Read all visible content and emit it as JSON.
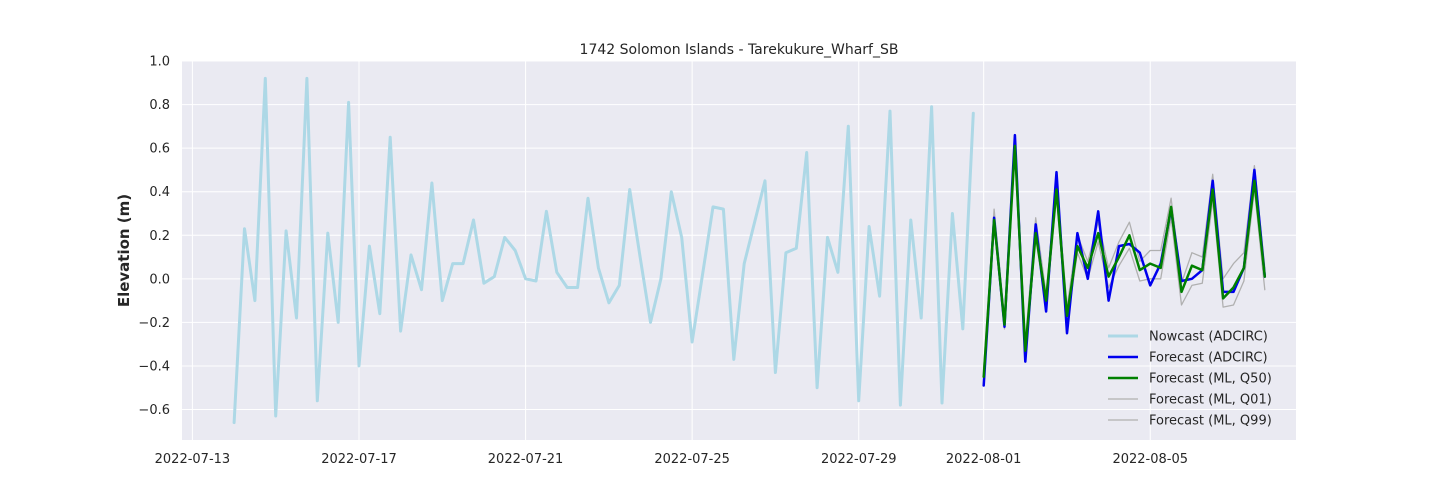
{
  "chart_data": {
    "type": "line",
    "title": "1742 Solomon Islands - Tarekukure_Wharf_SB",
    "xlabel": "",
    "ylabel": "Elevation (m)",
    "xlim": [
      "2022-07-12T18:00",
      "2022-08-08T12:00"
    ],
    "ylim": [
      -0.74,
      1.0
    ],
    "x_ticks": [
      "2022-07-13",
      "2022-07-17",
      "2022-07-21",
      "2022-07-25",
      "2022-07-29",
      "2022-08-01",
      "2022-08-05"
    ],
    "y_ticks": [
      "1.0",
      "0.8",
      "0.6",
      "0.4",
      "0.2",
      "0.0",
      "−0.2",
      "−0.4",
      "−0.6"
    ],
    "grid": true,
    "legend_position": "lower-right",
    "series": [
      {
        "name": "Nowcast (ADCIRC)",
        "color": "#add8e6",
        "width": 3,
        "x": [
          "2022-07-14T00:00",
          "2022-07-14T06:00",
          "2022-07-14T12:00",
          "2022-07-14T18:00",
          "2022-07-15T00:00",
          "2022-07-15T06:00",
          "2022-07-15T12:00",
          "2022-07-15T18:00",
          "2022-07-16T00:00",
          "2022-07-16T06:00",
          "2022-07-16T12:00",
          "2022-07-16T18:00",
          "2022-07-17T00:00",
          "2022-07-17T06:00",
          "2022-07-17T12:00",
          "2022-07-17T18:00",
          "2022-07-18T00:00",
          "2022-07-18T06:00",
          "2022-07-18T12:00",
          "2022-07-18T18:00",
          "2022-07-19T00:00",
          "2022-07-19T06:00",
          "2022-07-19T12:00",
          "2022-07-19T18:00",
          "2022-07-20T00:00",
          "2022-07-20T06:00",
          "2022-07-20T12:00",
          "2022-07-20T18:00",
          "2022-07-21T00:00",
          "2022-07-21T06:00",
          "2022-07-21T12:00",
          "2022-07-21T18:00",
          "2022-07-22T00:00",
          "2022-07-22T06:00",
          "2022-07-22T12:00",
          "2022-07-22T18:00",
          "2022-07-23T00:00",
          "2022-07-23T06:00",
          "2022-07-23T12:00",
          "2022-07-23T18:00",
          "2022-07-24T00:00",
          "2022-07-24T06:00",
          "2022-07-24T12:00",
          "2022-07-24T18:00",
          "2022-07-25T00:00",
          "2022-07-25T12:00",
          "2022-07-25T18:00",
          "2022-07-26T00:00",
          "2022-07-26T06:00",
          "2022-07-26T18:00",
          "2022-07-27T00:00",
          "2022-07-27T06:00",
          "2022-07-27T12:00",
          "2022-07-27T18:00",
          "2022-07-28T00:00",
          "2022-07-28T06:00",
          "2022-07-28T12:00",
          "2022-07-28T18:00",
          "2022-07-29T00:00",
          "2022-07-29T06:00",
          "2022-07-29T12:00",
          "2022-07-29T18:00",
          "2022-07-30T00:00",
          "2022-07-30T06:00",
          "2022-07-30T12:00",
          "2022-07-30T18:00",
          "2022-07-31T00:00",
          "2022-07-31T06:00",
          "2022-07-31T12:00",
          "2022-07-31T18:00"
        ],
        "values": [
          -0.66,
          0.23,
          -0.1,
          0.92,
          -0.63,
          0.22,
          -0.18,
          0.92,
          -0.56,
          0.21,
          -0.2,
          0.81,
          -0.4,
          0.15,
          -0.16,
          0.65,
          -0.24,
          0.11,
          -0.05,
          0.44,
          -0.1,
          0.07,
          0.07,
          0.27,
          -0.02,
          0.01,
          0.19,
          0.13,
          0.0,
          -0.01,
          0.31,
          0.03,
          -0.04,
          -0.04,
          0.37,
          0.05,
          -0.11,
          -0.03,
          0.41,
          0.1,
          -0.2,
          0.0,
          0.4,
          0.19,
          -0.29,
          0.33,
          0.32,
          -0.37,
          0.07,
          0.45,
          -0.43,
          0.12,
          0.14,
          0.58,
          -0.5,
          0.19,
          0.03,
          0.7,
          -0.56,
          0.24,
          -0.08,
          0.77,
          -0.58,
          0.27,
          -0.18,
          0.79,
          -0.57,
          0.3,
          -0.23,
          0.76
        ]
      },
      {
        "name": "Forecast (ADCIRC)",
        "color": "#0000ee",
        "width": 2.5,
        "x": [
          "2022-08-01T00:00",
          "2022-08-01T06:00",
          "2022-08-01T12:00",
          "2022-08-01T18:00",
          "2022-08-02T00:00",
          "2022-08-02T06:00",
          "2022-08-02T12:00",
          "2022-08-02T18:00",
          "2022-08-03T00:00",
          "2022-08-03T06:00",
          "2022-08-03T12:00",
          "2022-08-03T18:00",
          "2022-08-04T00:00",
          "2022-08-04T06:00",
          "2022-08-04T12:00",
          "2022-08-04T18:00",
          "2022-08-05T00:00",
          "2022-08-05T06:00",
          "2022-08-05T12:00",
          "2022-08-05T18:00",
          "2022-08-06T00:00",
          "2022-08-06T06:00",
          "2022-08-06T12:00",
          "2022-08-06T18:00",
          "2022-08-07T00:00",
          "2022-08-07T06:00",
          "2022-08-07T12:00",
          "2022-08-07T18:00"
        ],
        "values": [
          -0.49,
          0.28,
          -0.22,
          0.66,
          -0.38,
          0.25,
          -0.15,
          0.49,
          -0.25,
          0.21,
          0.0,
          0.31,
          -0.1,
          0.15,
          0.16,
          0.12,
          -0.03,
          0.07,
          0.32,
          -0.01,
          0.0,
          0.04,
          0.45,
          -0.06,
          -0.06,
          0.05,
          0.5,
          0.01
        ]
      },
      {
        "name": "Forecast (ML, Q50)",
        "color": "#008000",
        "width": 2.5,
        "x": [
          "2022-08-01T00:00",
          "2022-08-01T06:00",
          "2022-08-01T12:00",
          "2022-08-01T18:00",
          "2022-08-02T00:00",
          "2022-08-02T06:00",
          "2022-08-02T12:00",
          "2022-08-02T18:00",
          "2022-08-03T00:00",
          "2022-08-03T06:00",
          "2022-08-03T12:00",
          "2022-08-03T18:00",
          "2022-08-04T00:00",
          "2022-08-04T06:00",
          "2022-08-04T12:00",
          "2022-08-04T18:00",
          "2022-08-05T00:00",
          "2022-08-05T06:00",
          "2022-08-05T12:00",
          "2022-08-05T18:00",
          "2022-08-06T00:00",
          "2022-08-06T06:00",
          "2022-08-06T12:00",
          "2022-08-06T18:00",
          "2022-08-07T00:00",
          "2022-08-07T06:00",
          "2022-08-07T12:00",
          "2022-08-07T18:00"
        ],
        "values": [
          -0.45,
          0.27,
          -0.21,
          0.61,
          -0.33,
          0.21,
          -0.1,
          0.41,
          -0.17,
          0.15,
          0.05,
          0.21,
          0.01,
          0.1,
          0.2,
          0.04,
          0.07,
          0.05,
          0.33,
          -0.06,
          0.06,
          0.04,
          0.41,
          -0.09,
          -0.04,
          0.05,
          0.45,
          0.01
        ]
      },
      {
        "name": "Forecast (ML, Q01)",
        "color": "#b0b0b0",
        "width": 1.3,
        "x": [
          "2022-08-01T00:00",
          "2022-08-01T06:00",
          "2022-08-01T12:00",
          "2022-08-01T18:00",
          "2022-08-02T00:00",
          "2022-08-02T06:00",
          "2022-08-02T12:00",
          "2022-08-02T18:00",
          "2022-08-03T00:00",
          "2022-08-03T06:00",
          "2022-08-03T12:00",
          "2022-08-03T18:00",
          "2022-08-04T00:00",
          "2022-08-04T06:00",
          "2022-08-04T12:00",
          "2022-08-04T18:00",
          "2022-08-05T00:00",
          "2022-08-05T06:00",
          "2022-08-05T12:00",
          "2022-08-05T18:00",
          "2022-08-06T00:00",
          "2022-08-06T06:00",
          "2022-08-06T12:00",
          "2022-08-06T18:00",
          "2022-08-07T00:00",
          "2022-08-07T06:00",
          "2022-08-07T12:00",
          "2022-08-07T18:00"
        ],
        "values": [
          -0.49,
          0.26,
          -0.23,
          0.58,
          -0.37,
          0.19,
          -0.14,
          0.38,
          -0.21,
          0.12,
          0.0,
          0.17,
          -0.04,
          0.06,
          0.14,
          -0.01,
          0.0,
          0.0,
          0.28,
          -0.12,
          -0.03,
          -0.02,
          0.36,
          -0.13,
          -0.12,
          -0.01,
          0.41,
          -0.05
        ]
      },
      {
        "name": "Forecast (ML, Q99)",
        "color": "#b0b0b0",
        "width": 1.3,
        "x": [
          "2022-08-01T00:00",
          "2022-08-01T06:00",
          "2022-08-01T12:00",
          "2022-08-01T18:00",
          "2022-08-02T00:00",
          "2022-08-02T06:00",
          "2022-08-02T12:00",
          "2022-08-02T18:00",
          "2022-08-03T00:00",
          "2022-08-03T06:00",
          "2022-08-03T12:00",
          "2022-08-03T18:00",
          "2022-08-04T00:00",
          "2022-08-04T06:00",
          "2022-08-04T12:00",
          "2022-08-04T18:00",
          "2022-08-05T00:00",
          "2022-08-05T06:00",
          "2022-08-05T12:00",
          "2022-08-05T18:00",
          "2022-08-06T00:00",
          "2022-08-06T06:00",
          "2022-08-06T12:00",
          "2022-08-06T18:00",
          "2022-08-07T00:00",
          "2022-08-07T06:00",
          "2022-08-07T12:00",
          "2022-08-07T18:00"
        ],
        "values": [
          -0.41,
          0.32,
          -0.18,
          0.65,
          -0.29,
          0.28,
          -0.07,
          0.46,
          -0.13,
          0.2,
          0.08,
          0.26,
          0.05,
          0.17,
          0.26,
          0.08,
          0.13,
          0.13,
          0.37,
          -0.02,
          0.12,
          0.1,
          0.48,
          0.0,
          0.07,
          0.12,
          0.52,
          0.05
        ]
      }
    ]
  }
}
